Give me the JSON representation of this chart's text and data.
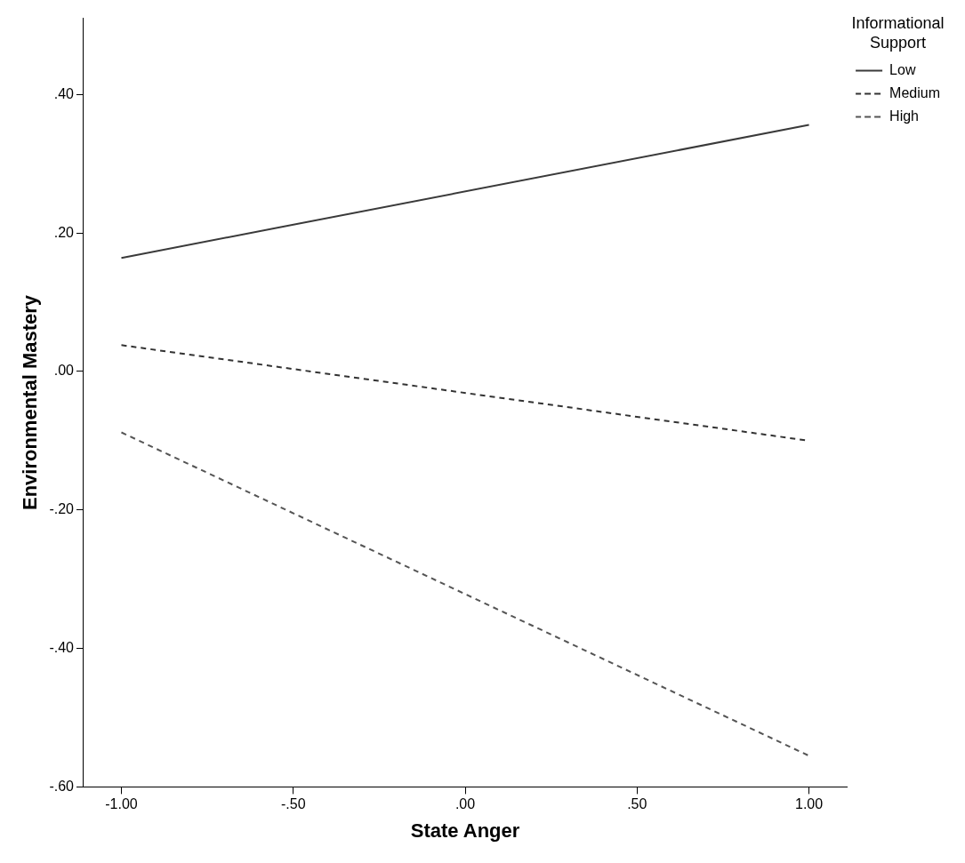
{
  "chart_data": {
    "type": "line",
    "xlabel": "State Anger",
    "ylabel": "Environmental Mastery",
    "legend_title": "Informational Support",
    "x": [
      -1,
      1
    ],
    "series": [
      {
        "name": "Low",
        "color": "#3a3a3a",
        "values": [
          0.164,
          0.356
        ],
        "line_style": "solid"
      },
      {
        "name": "Medium",
        "color": "#333333",
        "values": [
          0.038,
          -0.1
        ],
        "line_style": "dashed"
      },
      {
        "name": "High",
        "color": "#555555",
        "values": [
          -0.088,
          -0.555
        ],
        "line_style": "dashed"
      }
    ],
    "xlim": [
      -1.11,
      1.11
    ],
    "ylim": [
      -0.6,
      0.51
    ],
    "xticks": [
      {
        "value": -1,
        "label": "-1.00"
      },
      {
        "value": -0.5,
        "label": "-.50"
      },
      {
        "value": 0,
        "label": ".00"
      },
      {
        "value": 0.5,
        "label": ".50"
      },
      {
        "value": 1,
        "label": "1.00"
      }
    ],
    "yticks": [
      {
        "value": -0.6,
        "label": "-.60"
      },
      {
        "value": -0.4,
        "label": "-.40"
      },
      {
        "value": -0.2,
        "label": "-.20"
      },
      {
        "value": 0,
        "label": ".00"
      },
      {
        "value": 0.2,
        "label": ".20"
      },
      {
        "value": 0.4,
        "label": ".40"
      }
    ],
    "grid": false,
    "legend": "top right",
    "marker": "none"
  }
}
